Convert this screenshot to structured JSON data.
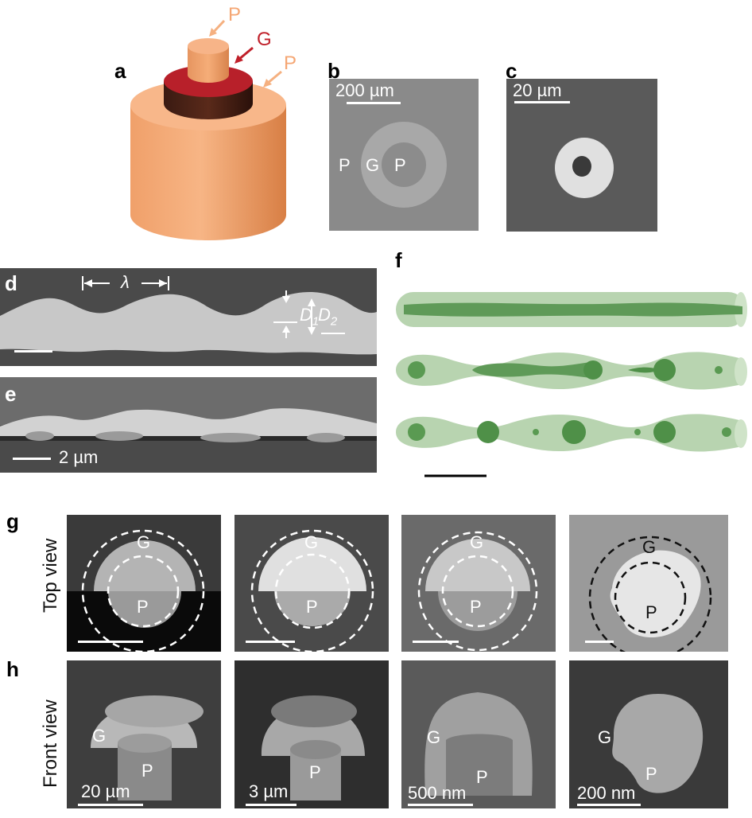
{
  "panel_labels": {
    "a": "a",
    "b": "b",
    "c": "c",
    "d": "d",
    "e": "e",
    "f": "f",
    "g": "g",
    "h": "h"
  },
  "schematic": {
    "outer_label": "P",
    "middle_label": "G",
    "inner_label": "P",
    "colors": {
      "P": "#f5a673",
      "G": "#c0202a"
    }
  },
  "b": {
    "scale": "200 µm",
    "labels": [
      "P",
      "G",
      "P"
    ]
  },
  "c": {
    "scale": "20 µm"
  },
  "d": {
    "lambda": "λ",
    "D1": "D",
    "D1_sub": "1",
    "D2": "D",
    "D2_sub": "2"
  },
  "e": {
    "scale": "2 µm"
  },
  "row_labels": {
    "top": "Top view",
    "front": "Front view"
  },
  "g": {
    "G": "G",
    "P": "P"
  },
  "h": {
    "G": "G",
    "P": "P",
    "scales": [
      "20 µm",
      "3 µm",
      "500 nm",
      "200 nm"
    ]
  }
}
